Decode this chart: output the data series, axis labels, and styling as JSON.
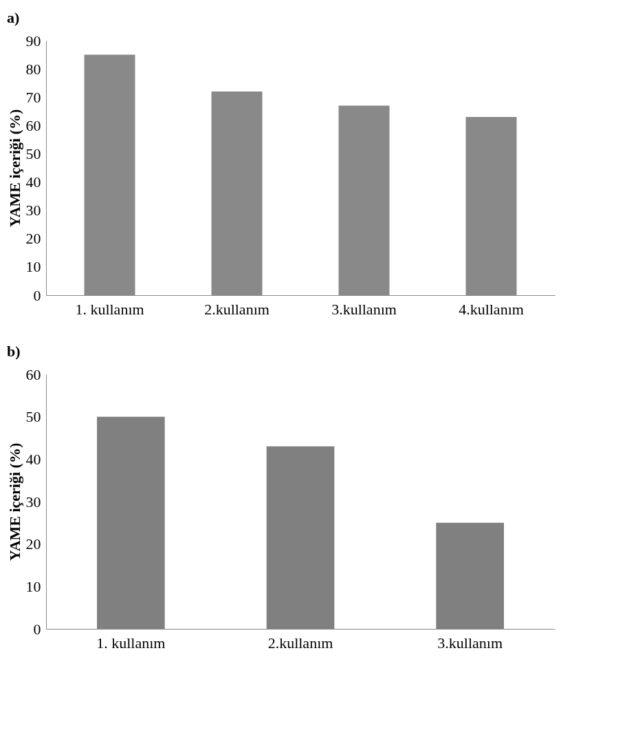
{
  "chart_data": [
    {
      "type": "bar",
      "title": "a)",
      "ylabel": "YAME içeriği (%)",
      "categories": [
        "1. kullanım",
        "2.kullanım",
        "3.kullanım",
        "4.kullanım"
      ],
      "values": [
        85,
        72,
        67,
        63
      ],
      "color": "#898989",
      "ylim": [
        0,
        90
      ],
      "yticks": [
        0,
        10,
        20,
        30,
        40,
        50,
        60,
        70,
        80,
        90
      ],
      "grid": false
    },
    {
      "type": "bar",
      "title": "b)",
      "ylabel": "YAME içeriği (%)",
      "categories": [
        "1. kullanım",
        "2.kullanım",
        "3.kullanım"
      ],
      "values": [
        50,
        43,
        25
      ],
      "color": "#808080",
      "ylim": [
        0,
        60
      ],
      "yticks": [
        0,
        10,
        20,
        30,
        40,
        50,
        60
      ],
      "grid": false
    }
  ]
}
